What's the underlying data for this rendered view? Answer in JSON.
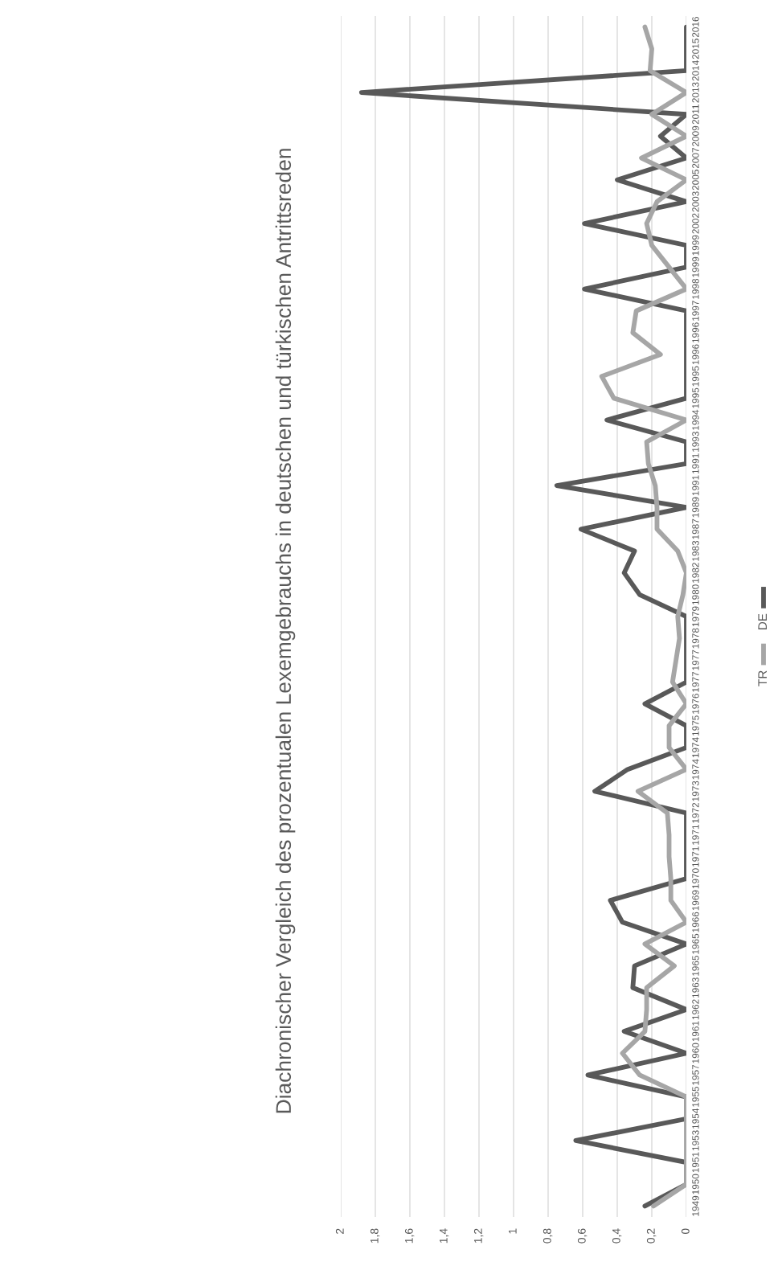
{
  "chart_data": {
    "type": "line",
    "orientation": "horizontal",
    "title": "Diachronischer Vergleich des prozentualen Lexemgebrauchs in deutschen und türkischen Antrittsreden",
    "categories": [
      "2016",
      "2015",
      "2014",
      "2013",
      "2011",
      "2009",
      "2007",
      "2005",
      "2003",
      "2002",
      "1999",
      "1999",
      "1998",
      "1997",
      "1996",
      "1996",
      "1995",
      "1995",
      "1994",
      "1993",
      "1991",
      "1991",
      "1989",
      "1987",
      "1983",
      "1982",
      "1980",
      "1979",
      "1978",
      "1977",
      "1977",
      "1976",
      "1975",
      "1974",
      "1974",
      "1973",
      "1972",
      "1971",
      "1971",
      "1970",
      "1969",
      "1966",
      "1965",
      "1965",
      "1963",
      "1962",
      "1961",
      "1960",
      "1957",
      "1955",
      "1954",
      "1953",
      "1951",
      "1950",
      "1949"
    ],
    "series": [
      {
        "name": "DE",
        "color": "#595959",
        "values": [
          0,
          0,
          0,
          1.88,
          0,
          0.15,
          0,
          0.4,
          0,
          0.59,
          0,
          0,
          0.59,
          0,
          0,
          0,
          0,
          0,
          0.46,
          0,
          0,
          0.75,
          0,
          0.61,
          0.3,
          0.36,
          0.27,
          0,
          0,
          0,
          0,
          0.24,
          0,
          0,
          0.34,
          0.53,
          0,
          0,
          0,
          0,
          0.44,
          0.37,
          0,
          0.3,
          0.31,
          0,
          0.36,
          0,
          0.57,
          0,
          0,
          0.64,
          0,
          0,
          0.24
        ]
      },
      {
        "name": "TR",
        "color": "#a6a6a6",
        "values": [
          0.24,
          0.2,
          0.21,
          0,
          0.2,
          0,
          0.26,
          0,
          0.17,
          0.23,
          0.2,
          0.1,
          0,
          0.29,
          0.31,
          0.15,
          0.49,
          0.42,
          0,
          0.23,
          0.22,
          0.18,
          0.17,
          0.17,
          0.05,
          0,
          0.02,
          0.05,
          0.04,
          0.06,
          0.08,
          0,
          0.1,
          0.1,
          0,
          0.28,
          0.11,
          0.1,
          0.1,
          0.09,
          0.09,
          0,
          0.24,
          0.07,
          0.23,
          0.23,
          0.24,
          0.37,
          0.27,
          0,
          0,
          0,
          0,
          0,
          0.19
        ]
      }
    ],
    "xlim": [
      2,
      0
    ],
    "xticks": [
      2,
      {
        "value": 1.8,
        "label": "1,8"
      },
      {
        "value": 1.6,
        "label": "1,6"
      },
      {
        "value": 1.4,
        "label": "1,4"
      },
      {
        "value": 1.2,
        "label": "1,2"
      },
      1,
      {
        "value": 0.8,
        "label": "0,8"
      },
      {
        "value": 0.6,
        "label": "0,6"
      },
      {
        "value": 0.4,
        "label": "0,4"
      },
      {
        "value": 0.2,
        "label": "0,2"
      },
      0
    ],
    "grid": "x",
    "legend": "right",
    "marker": "none",
    "line_style": "solid"
  }
}
